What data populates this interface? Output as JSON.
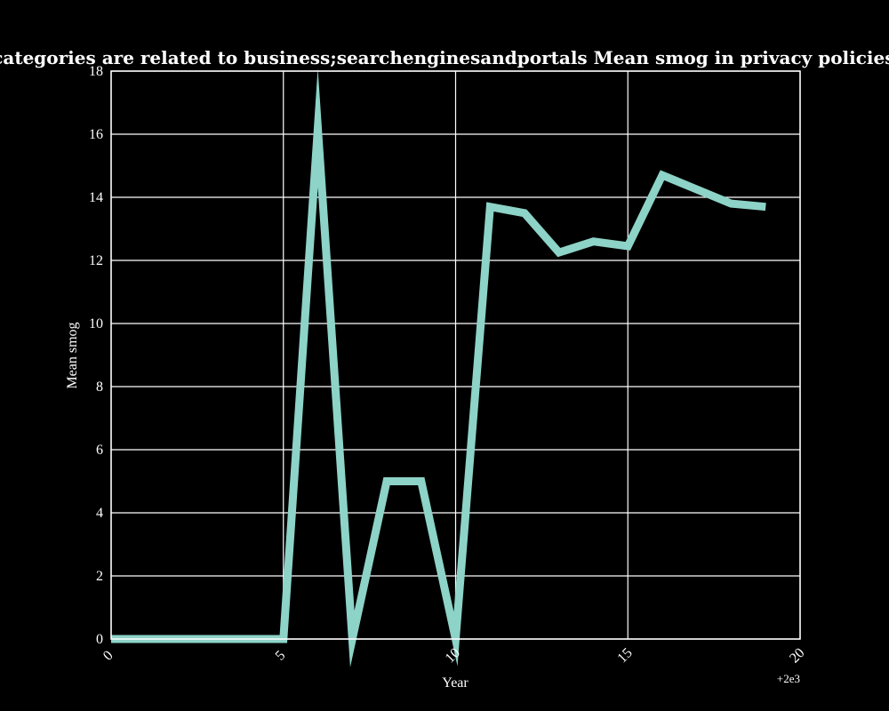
{
  "chart_data": {
    "type": "line",
    "title": "when categories are related to business;searchenginesandportals Mean smog in privacy policies by Year",
    "xlabel": "Year",
    "ylabel": "Mean smog",
    "x_offset_label": "+2e3",
    "xlim": [
      0,
      20
    ],
    "ylim": [
      0,
      18
    ],
    "x_ticks": [
      0,
      5,
      10,
      15,
      20
    ],
    "y_ticks": [
      0,
      2,
      4,
      6,
      8,
      10,
      12,
      14,
      16,
      18
    ],
    "grid": true,
    "line_color": "#8dd3c7",
    "background_color": "#000000",
    "series": [
      {
        "x": [
          0,
          1,
          2,
          3,
          4,
          5,
          6,
          7,
          8,
          9,
          10,
          11,
          12,
          13,
          14,
          15,
          16,
          17,
          18,
          19
        ],
        "values": [
          0,
          0,
          0,
          0,
          0,
          0,
          16.2,
          0,
          5.0,
          5.0,
          0,
          13.7,
          13.5,
          12.25,
          12.6,
          12.45,
          14.7,
          14.25,
          13.8,
          13.7
        ]
      }
    ]
  }
}
